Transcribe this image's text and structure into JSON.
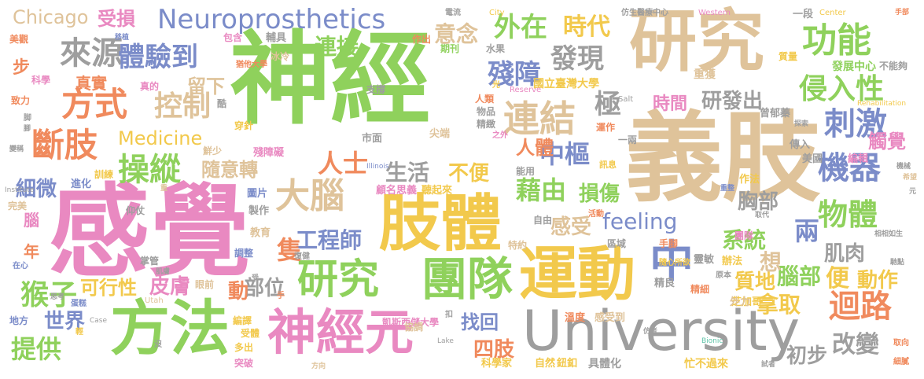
{
  "palette": {
    "green": "#8fd15c",
    "tan": "#dfc39a",
    "pink": "#e989c1",
    "gold": "#f2c94c",
    "orange": "#f08a5d",
    "blue": "#7b8cc9",
    "gray": "#9e9e9e",
    "teal": "#5fc4a8"
  },
  "words": [
    {
      "text": "感覺",
      "color": "pink"
    },
    {
      "text": "神經",
      "color": "green"
    },
    {
      "text": "義肢",
      "color": "tan"
    },
    {
      "text": "研究",
      "color": "tan"
    },
    {
      "text": "肢體",
      "color": "gold"
    },
    {
      "text": "運動",
      "color": "gold"
    },
    {
      "text": "方法",
      "color": "green"
    },
    {
      "text": "University",
      "color": "gray"
    },
    {
      "text": "神經元",
      "color": "pink"
    },
    {
      "text": "團隊",
      "color": "green"
    },
    {
      "text": "研究",
      "color": "green"
    },
    {
      "text": "中",
      "color": "blue"
    },
    {
      "text": "Neuroprosthetics",
      "color": "blue"
    },
    {
      "text": "大腦",
      "color": "tan"
    },
    {
      "text": "迴路",
      "color": "orange"
    },
    {
      "text": "來源",
      "color": "gray"
    },
    {
      "text": "方式",
      "color": "orange"
    },
    {
      "text": "斷肢",
      "color": "orange"
    },
    {
      "text": "連結",
      "color": "tan"
    },
    {
      "text": "功能",
      "color": "green"
    },
    {
      "text": "刺激",
      "color": "blue"
    },
    {
      "text": "機器",
      "color": "blue"
    },
    {
      "text": "物體",
      "color": "green"
    },
    {
      "text": "侵入性",
      "color": "green"
    },
    {
      "text": "操縱",
      "color": "green"
    },
    {
      "text": "控制",
      "color": "tan"
    },
    {
      "text": "體驗到",
      "color": "blue"
    },
    {
      "text": "外在",
      "color": "green"
    },
    {
      "text": "時代",
      "color": "gold"
    },
    {
      "text": "發現",
      "color": "gray"
    },
    {
      "text": "殘障",
      "color": "blue"
    },
    {
      "text": "連接",
      "color": "green"
    },
    {
      "text": "意念",
      "color": "tan"
    },
    {
      "text": "Chicago",
      "color": "tan"
    },
    {
      "text": "受損",
      "color": "pink"
    },
    {
      "text": "feeling",
      "color": "blue"
    },
    {
      "text": "Medicine",
      "color": "gold"
    },
    {
      "text": "人士",
      "color": "orange"
    },
    {
      "text": "中樞",
      "color": "blue"
    },
    {
      "text": "藉由",
      "color": "green"
    },
    {
      "text": "工程師",
      "color": "blue"
    },
    {
      "text": "生活",
      "color": "gray"
    },
    {
      "text": "不便",
      "color": "gold"
    },
    {
      "text": "損傷",
      "color": "green"
    },
    {
      "text": "感受",
      "color": "tan"
    },
    {
      "text": "系統",
      "color": "green"
    },
    {
      "text": "肌肉",
      "color": "gray"
    },
    {
      "text": "胸部",
      "color": "gray"
    },
    {
      "text": "兩",
      "color": "blue"
    },
    {
      "text": "猴子",
      "color": "green"
    },
    {
      "text": "可行性",
      "color": "gold"
    },
    {
      "text": "皮膚",
      "color": "pink"
    },
    {
      "text": "部位",
      "color": "gray"
    },
    {
      "text": "世界",
      "color": "blue"
    },
    {
      "text": "提供",
      "color": "green"
    },
    {
      "text": "找回",
      "color": "blue"
    },
    {
      "text": "四肢",
      "color": "orange"
    },
    {
      "text": "質地",
      "color": "gold"
    },
    {
      "text": "拿取",
      "color": "gold"
    },
    {
      "text": "初步",
      "color": "gray"
    },
    {
      "text": "改變",
      "color": "gray"
    },
    {
      "text": "腦部",
      "color": "green"
    },
    {
      "text": "動作",
      "color": "gold"
    },
    {
      "text": "便",
      "color": "gold"
    },
    {
      "text": "想",
      "color": "tan"
    },
    {
      "text": "研發出",
      "color": "gray"
    },
    {
      "text": "時間",
      "color": "pink"
    },
    {
      "text": "觸覺",
      "color": "pink"
    },
    {
      "text": "細微",
      "color": "blue"
    },
    {
      "text": "隨意轉",
      "color": "tan"
    },
    {
      "text": "留下",
      "color": "tan"
    },
    {
      "text": "極",
      "color": "gray"
    },
    {
      "text": "真實",
      "color": "orange"
    },
    {
      "text": "人體",
      "color": "orange"
    },
    {
      "text": "隻",
      "color": "orange"
    },
    {
      "text": "動",
      "color": "orange"
    },
    {
      "text": "步",
      "color": "orange"
    },
    {
      "text": "年",
      "color": "orange"
    },
    {
      "text": "腦",
      "color": "pink"
    },
    {
      "text": "國立臺灣大學",
      "color": "gold"
    },
    {
      "text": "發展中心",
      "color": "green"
    },
    {
      "text": "重獲",
      "color": "tan"
    },
    {
      "text": "曾郁蓁",
      "color": "gray"
    },
    {
      "text": "傳入",
      "color": "gray"
    },
    {
      "text": "美國",
      "color": "gray"
    },
    {
      "text": "編輯",
      "color": "pink"
    },
    {
      "text": "作法",
      "color": "gold"
    },
    {
      "text": "芝加哥",
      "color": "gold"
    },
    {
      "text": "辦法",
      "color": "gold"
    },
    {
      "text": "團隊",
      "color": "pink"
    },
    {
      "text": "靈敏",
      "color": "gray"
    },
    {
      "text": "精良",
      "color": "gray"
    },
    {
      "text": "外力",
      "color": "tan"
    },
    {
      "text": "感受到",
      "color": "tan"
    },
    {
      "text": "溫度",
      "color": "orange"
    },
    {
      "text": "鈕釦",
      "color": "gold"
    },
    {
      "text": "具體化",
      "color": "gray"
    },
    {
      "text": "忙不過來",
      "color": "gold"
    },
    {
      "text": "科學家",
      "color": "gold"
    },
    {
      "text": "自然",
      "color": "gold"
    },
    {
      "text": "凱斯西儲大學",
      "color": "pink"
    },
    {
      "text": "殘障礙",
      "color": "pink"
    },
    {
      "text": "尖端",
      "color": "tan"
    },
    {
      "text": "市面",
      "color": "gray"
    },
    {
      "text": "聽起來",
      "color": "gold"
    },
    {
      "text": "顧名思義",
      "color": "pink"
    },
    {
      "text": "圖片",
      "color": "blue"
    },
    {
      "text": "製作",
      "color": "gray"
    },
    {
      "text": "教育",
      "color": "tan"
    },
    {
      "text": "調整",
      "color": "blue"
    },
    {
      "text": "協調",
      "color": "tan"
    },
    {
      "text": "編譯",
      "color": "gold"
    },
    {
      "text": "多出",
      "color": "gold"
    },
    {
      "text": "突破",
      "color": "pink"
    },
    {
      "text": "受體",
      "color": "gold"
    },
    {
      "text": "水果",
      "color": "gray"
    },
    {
      "text": "期刊",
      "color": "green"
    },
    {
      "text": "作出",
      "color": "orange"
    },
    {
      "text": "支撐",
      "color": "gray"
    },
    {
      "text": "輔具",
      "color": "gray"
    },
    {
      "text": "包含",
      "color": "pink"
    },
    {
      "text": "冰冷",
      "color": "tan"
    },
    {
      "text": "猶他大學",
      "color": "orange"
    },
    {
      "text": "真的",
      "color": "pink"
    },
    {
      "text": "科學",
      "color": "pink"
    },
    {
      "text": "致力",
      "color": "orange"
    },
    {
      "text": "美觀",
      "color": "orange"
    },
    {
      "text": "進化",
      "color": "blue"
    },
    {
      "text": "訓練",
      "color": "gold"
    },
    {
      "text": "完美",
      "color": "tan"
    },
    {
      "text": "仰仗",
      "color": "gray"
    },
    {
      "text": "掌管",
      "color": "gray"
    },
    {
      "text": "眼前",
      "color": "tan"
    },
    {
      "text": "手腳",
      "color": "orange"
    },
    {
      "text": "區域",
      "color": "gray"
    },
    {
      "text": "自由",
      "color": "gray"
    },
    {
      "text": "能用",
      "color": "gray"
    },
    {
      "text": "精緻",
      "color": "gray"
    },
    {
      "text": "物品",
      "color": "gray"
    },
    {
      "text": "人類",
      "color": "orange"
    },
    {
      "text": "運作",
      "color": "orange"
    },
    {
      "text": "一兩",
      "color": "gray"
    },
    {
      "text": "訊息",
      "color": "gold"
    },
    {
      "text": "一段",
      "color": "gray"
    },
    {
      "text": "質量",
      "color": "gold"
    },
    {
      "text": "不能夠",
      "color": "gray"
    },
    {
      "text": "仿生醫療中心",
      "color": "gray"
    },
    {
      "text": "電流",
      "color": "gray"
    },
    {
      "text": "City",
      "color": "gold"
    },
    {
      "text": "Western",
      "color": "pink"
    },
    {
      "text": "Center",
      "color": "gold"
    },
    {
      "text": "Reserve",
      "color": "pink"
    },
    {
      "text": "Salt",
      "color": "gray"
    },
    {
      "text": "Rehabilitation",
      "color": "gold"
    },
    {
      "text": "Illinois",
      "color": "blue"
    },
    {
      "text": "Institute",
      "color": "gray"
    },
    {
      "text": "Utah",
      "color": "tan"
    },
    {
      "text": "Case",
      "color": "gray"
    },
    {
      "text": "Lake",
      "color": "gray"
    },
    {
      "text": "Bionic",
      "color": "teal"
    },
    {
      "text": "之外",
      "color": "pink"
    },
    {
      "text": "光",
      "color": "gold"
    },
    {
      "text": "穿針",
      "color": "gold"
    },
    {
      "text": "酷",
      "color": "gray"
    },
    {
      "text": "鮮少",
      "color": "tan"
    },
    {
      "text": "隨心所欲",
      "color": "gold"
    },
    {
      "text": "特約",
      "color": "tan"
    },
    {
      "text": "活動",
      "color": "orange"
    },
    {
      "text": "原本",
      "color": "gray"
    },
    {
      "text": "精細",
      "color": "orange"
    },
    {
      "text": "取向",
      "color": "orange"
    },
    {
      "text": "細膩",
      "color": "orange"
    },
    {
      "text": "試者",
      "color": "gray"
    },
    {
      "text": "方向",
      "color": "tan"
    },
    {
      "text": "蛋糕",
      "color": "blue"
    },
    {
      "text": "地方",
      "color": "blue"
    },
    {
      "text": "輕",
      "color": "gold"
    },
    {
      "text": "沒",
      "color": "gray"
    },
    {
      "text": "在心",
      "color": "blue"
    },
    {
      "text": "思考",
      "color": "gray"
    },
    {
      "text": "肌膚",
      "color": "gray"
    },
    {
      "text": "復健",
      "color": "gray"
    },
    {
      "text": "扣",
      "color": "gray"
    },
    {
      "text": "手",
      "color": "orange"
    },
    {
      "text": "受",
      "color": "gray"
    },
    {
      "text": "脚",
      "color": "gray"
    },
    {
      "text": "移植",
      "color": "blue"
    },
    {
      "text": "希望",
      "color": "tan"
    },
    {
      "text": "相相如生",
      "color": "gray"
    },
    {
      "text": "變稱",
      "color": "gray"
    },
    {
      "text": "手部",
      "color": "orange"
    },
    {
      "text": "探索",
      "color": "gray"
    },
    {
      "text": "機械",
      "color": "gray"
    },
    {
      "text": "重整",
      "color": "blue"
    },
    {
      "text": "取代",
      "color": "gray"
    },
    {
      "text": "馳點",
      "color": "gray"
    },
    {
      "text": "仿者",
      "color": "gray"
    },
    {
      "text": "重",
      "color": "tan"
    },
    {
      "text": "元",
      "color": "gray"
    },
    {
      "text": "腳",
      "color": "gray"
    }
  ]
}
